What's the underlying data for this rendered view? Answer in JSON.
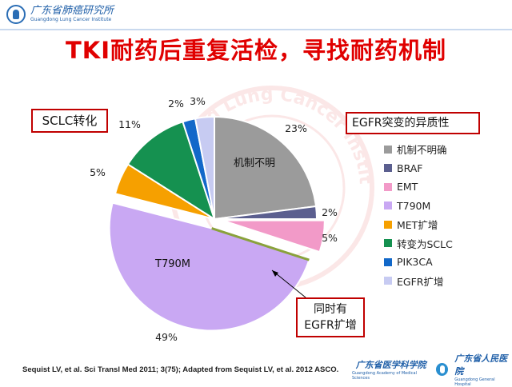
{
  "header": {
    "institute_cn": "广东省肺癌研究所",
    "institute_en": "Guangdong Lung Cancer Institute",
    "watermark_text": "Guangdong Lung Cancer Institute"
  },
  "title": "TKI耐药后重复活检，寻找耐药机制",
  "callouts": {
    "sclc": "SCLC转化",
    "legend_title": "EGFR突变的异质性",
    "coamp_line1": "同时有",
    "coamp_line2": "EGFR扩增"
  },
  "chart_data": {
    "type": "pie",
    "title": "EGFR突变的异质性",
    "start_angle_deg": 0,
    "direction": "clockwise",
    "slices": [
      {
        "name": "机制不明确",
        "value": 23,
        "label": "23%",
        "color": "#9b9b9b",
        "inner_label": "机制不明"
      },
      {
        "name": "BRAF",
        "value": 2,
        "label": "2%",
        "color": "#5b5f8f"
      },
      {
        "name": "EMT",
        "value": 5,
        "label": "5%",
        "color": "#f29ac8"
      },
      {
        "name": "T790M",
        "value": 49,
        "label": "49%",
        "color": "#c9a8f3",
        "inner_label": "T790M"
      },
      {
        "name": "MET扩增",
        "value": 5,
        "label": "5%",
        "color": "#f6a000"
      },
      {
        "name": "转变为SCLC",
        "value": 11,
        "label": "11%",
        "color": "#159150"
      },
      {
        "name": "PIK3CA",
        "value": 2,
        "label": "2%",
        "color": "#1268c9"
      },
      {
        "name": "EGFR扩增",
        "value": 3,
        "label": "3%",
        "color": "#c7cbf2"
      }
    ]
  },
  "footer": {
    "reference": "Sequist LV, et al. Sci Transl Med 2011; 3(75); Adapted from Sequist LV, et al. 2012 ASCO.",
    "academy_cn": "广东省医学科学院",
    "academy_en": "Guangdong Academy of Medical Sciences",
    "hospital_cn": "广东省人民医院",
    "hospital_en": "Guangdong General Hospital"
  }
}
